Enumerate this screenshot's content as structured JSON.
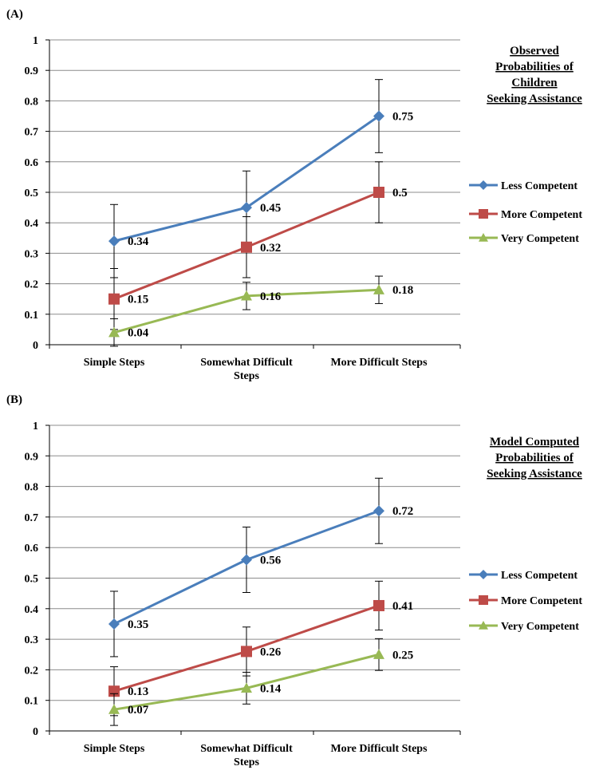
{
  "chart_data": [
    {
      "panel_label": "(A)",
      "type": "line",
      "title_lines": [
        "Observed",
        "Probabilities of",
        "Children",
        "Seeking Assistance"
      ],
      "categories": [
        [
          "Simple Steps"
        ],
        [
          "Somewhat Difficult",
          "Steps"
        ],
        [
          "More Difficult Steps"
        ]
      ],
      "ylim": [
        0,
        1
      ],
      "yticks": [
        "0",
        "0.1",
        "0.2",
        "0.3",
        "0.4",
        "0.5",
        "0.6",
        "0.7",
        "0.8",
        "0.9",
        "1"
      ],
      "grid": true,
      "legend_position": "right",
      "series": [
        {
          "name": "Less Competent",
          "color": "#4a7ebb",
          "marker": "diamond",
          "values": [
            0.34,
            0.45,
            0.75
          ],
          "labels": [
            "0.34",
            "0.45",
            "0.75"
          ],
          "error": [
            0.12,
            0.12,
            0.12
          ]
        },
        {
          "name": "More Competent",
          "color": "#be4b48",
          "marker": "square",
          "values": [
            0.15,
            0.32,
            0.5
          ],
          "labels": [
            "0.15",
            "0.32",
            "0.5"
          ],
          "error": [
            0.1,
            0.1,
            0.1
          ]
        },
        {
          "name": "Very Competent",
          "color": "#98b954",
          "marker": "triangle",
          "values": [
            0.04,
            0.16,
            0.18
          ],
          "labels": [
            "0.04",
            "0.16",
            "0.18"
          ],
          "error": [
            0.045,
            0.045,
            0.045
          ]
        }
      ]
    },
    {
      "panel_label": "(B)",
      "type": "line",
      "title_lines": [
        "Model Computed",
        "Probabilities of",
        "Seeking Assistance"
      ],
      "categories": [
        [
          "Simple Steps"
        ],
        [
          "Somewhat Difficult",
          "Steps"
        ],
        [
          "More Difficult Steps"
        ]
      ],
      "ylim": [
        0,
        1
      ],
      "yticks": [
        "0",
        "0.1",
        "0.2",
        "0.3",
        "0.4",
        "0.5",
        "0.6",
        "0.7",
        "0.8",
        "0.9",
        "1"
      ],
      "grid": true,
      "legend_position": "right",
      "series": [
        {
          "name": "Less Competent",
          "color": "#4a7ebb",
          "marker": "diamond",
          "values": [
            0.35,
            0.56,
            0.72
          ],
          "labels": [
            "0.35",
            "0.56",
            "0.72"
          ],
          "error": [
            0.107,
            0.107,
            0.107
          ]
        },
        {
          "name": "More Competent",
          "color": "#be4b48",
          "marker": "square",
          "values": [
            0.13,
            0.26,
            0.41
          ],
          "labels": [
            "0.13",
            "0.26",
            "0.41"
          ],
          "error": [
            0.08,
            0.08,
            0.08
          ]
        },
        {
          "name": "Very Competent",
          "color": "#98b954",
          "marker": "triangle",
          "values": [
            0.07,
            0.14,
            0.25
          ],
          "labels": [
            "0.07",
            "0.14",
            "0.25"
          ],
          "error": [
            0.052,
            0.052,
            0.052
          ]
        }
      ]
    }
  ]
}
